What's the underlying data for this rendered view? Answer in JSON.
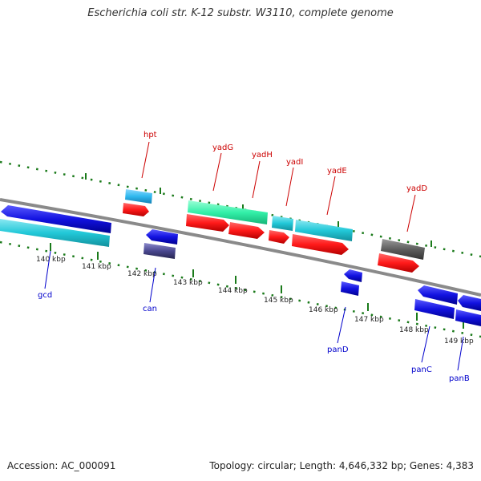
{
  "title": "Escherichia coli str. K-12 substr. W3110, complete genome",
  "footer": {
    "accession": "Accession: AC_000091",
    "topology": "Topology: circular; Length: 4,646,332 bp; Genes: 4,383"
  },
  "kbp_ticks": [
    {
      "kbp": 140,
      "label": "140 kbp"
    },
    {
      "kbp": 141,
      "label": "141 kbp"
    },
    {
      "kbp": 142,
      "label": "142 kbp"
    },
    {
      "kbp": 143,
      "label": "143 kbp"
    },
    {
      "kbp": 144,
      "label": "144 kbp"
    },
    {
      "kbp": 145,
      "label": "145 kbp"
    },
    {
      "kbp": 146,
      "label": "146 kbp"
    },
    {
      "kbp": 147,
      "label": "147 kbp"
    },
    {
      "kbp": 148,
      "label": "148 kbp"
    },
    {
      "kbp": 149,
      "label": "149 kbp"
    }
  ],
  "gene_labels_forward": [
    "hpt",
    "yadG",
    "yadH",
    "yadI",
    "yadE",
    "yadD"
  ],
  "gene_labels_reverse": [
    "gcd",
    "can",
    "panD",
    "panC",
    "panB"
  ],
  "colors": {
    "forward_label": "#cc0000",
    "reverse_label": "#0000cc",
    "backbone": "#8a8a8a",
    "tick": "#1a7a1a",
    "gene_red": "#ff1a1a",
    "gene_blue": "#1212e0",
    "gene_cyan": "#22c8d8",
    "gene_green": "#33f0a8",
    "gene_skyblue": "#2fb8ee",
    "gene_gray": "#5e5e5e",
    "gene_purple": "#4a4890"
  }
}
